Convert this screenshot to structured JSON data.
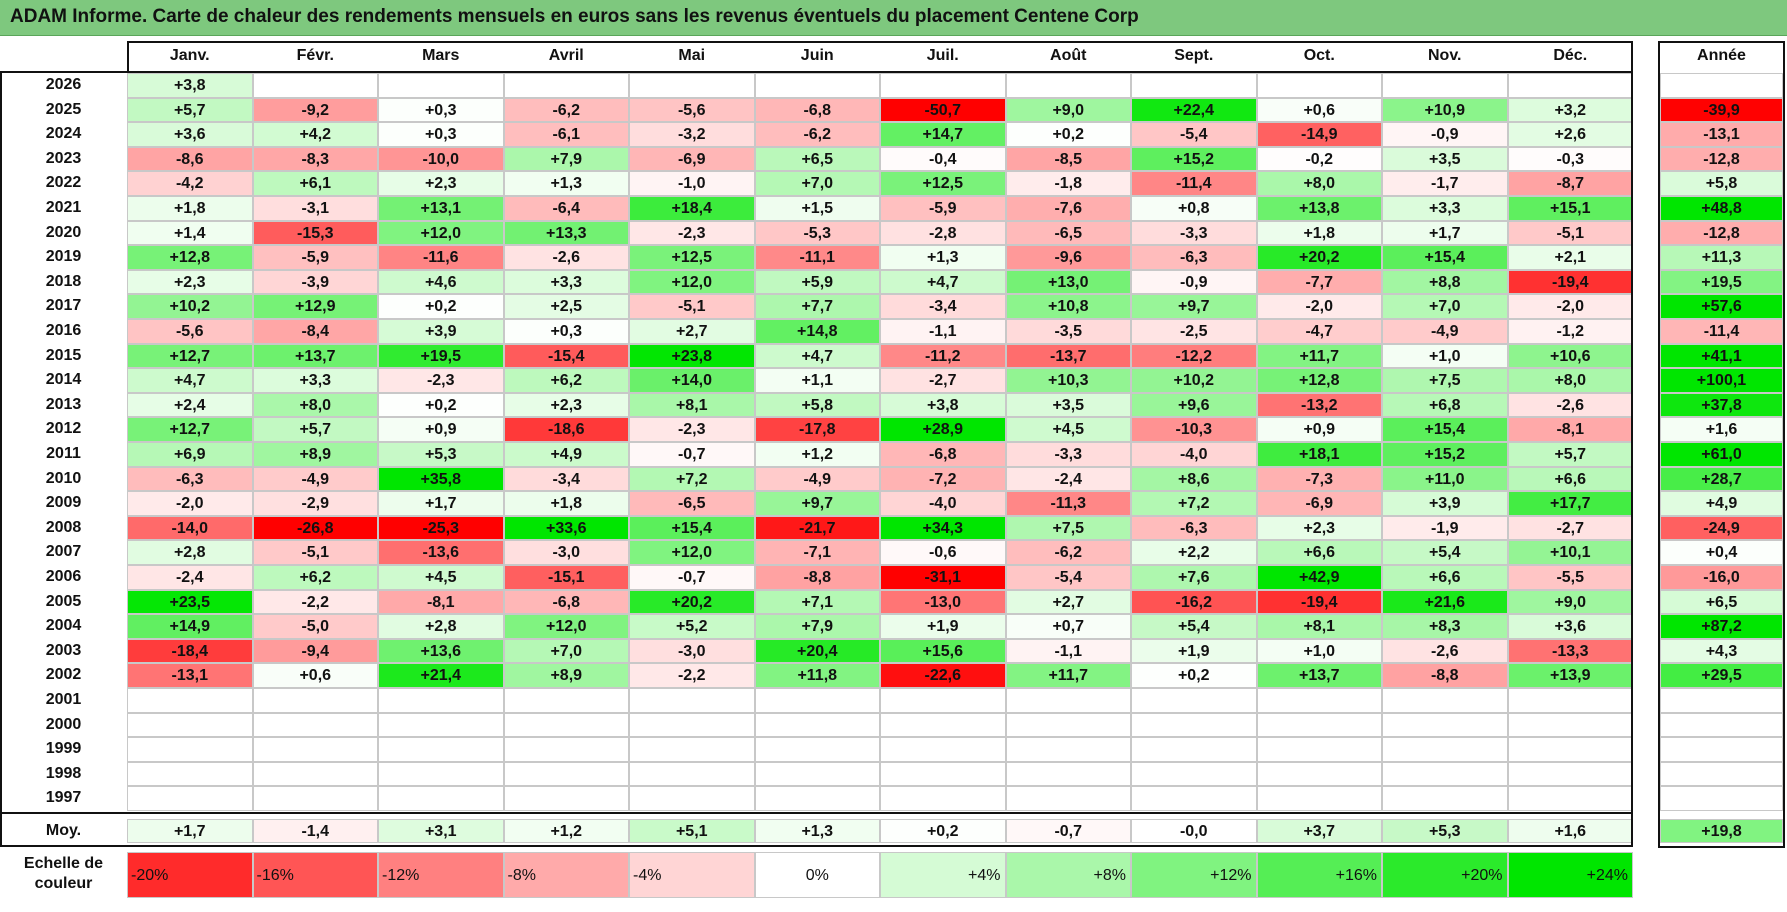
{
  "title": "ADAM Informe. Carte de chaleur des rendements mensuels en euros sans les revenus éventuels du placement Centene Corp",
  "chart_data": {
    "type": "heatmap",
    "columns": [
      "Janv.",
      "Févr.",
      "Mars",
      "Avril",
      "Mai",
      "Juin",
      "Juil.",
      "Août",
      "Sept.",
      "Oct.",
      "Nov.",
      "Déc."
    ],
    "year_column": "Année",
    "rows": [
      {
        "label": "2026",
        "values": [
          "+3,8",
          "",
          "",
          "",
          "",
          "",
          "",
          "",
          "",
          "",
          "",
          ""
        ],
        "year": ""
      },
      {
        "label": "2025",
        "values": [
          "+5,7",
          "-9,2",
          "+0,3",
          "-6,2",
          "-5,6",
          "-6,8",
          "-50,7",
          "+9,0",
          "+22,4",
          "+0,6",
          "+10,9",
          "+3,2"
        ],
        "year": "-39,9"
      },
      {
        "label": "2024",
        "values": [
          "+3,6",
          "+4,2",
          "+0,3",
          "-6,1",
          "-3,2",
          "-6,2",
          "+14,7",
          "+0,2",
          "-5,4",
          "-14,9",
          "-0,9",
          "+2,6"
        ],
        "year": "-13,1"
      },
      {
        "label": "2023",
        "values": [
          "-8,6",
          "-8,3",
          "-10,0",
          "+7,9",
          "-6,9",
          "+6,5",
          "-0,4",
          "-8,5",
          "+15,2",
          "-0,2",
          "+3,5",
          "-0,3"
        ],
        "year": "-12,8"
      },
      {
        "label": "2022",
        "values": [
          "-4,2",
          "+6,1",
          "+2,3",
          "+1,3",
          "-1,0",
          "+7,0",
          "+12,5",
          "-1,8",
          "-11,4",
          "+8,0",
          "-1,7",
          "-8,7"
        ],
        "year": "+5,8"
      },
      {
        "label": "2021",
        "values": [
          "+1,8",
          "-3,1",
          "+13,1",
          "-6,4",
          "+18,4",
          "+1,5",
          "-5,9",
          "-7,6",
          "+0,8",
          "+13,8",
          "+3,3",
          "+15,1"
        ],
        "year": "+48,8"
      },
      {
        "label": "2020",
        "values": [
          "+1,4",
          "-15,3",
          "+12,0",
          "+13,3",
          "-2,3",
          "-5,3",
          "-2,8",
          "-6,5",
          "-3,3",
          "+1,8",
          "+1,7",
          "-5,1"
        ],
        "year": "-12,8"
      },
      {
        "label": "2019",
        "values": [
          "+12,8",
          "-5,9",
          "-11,6",
          "-2,6",
          "+12,5",
          "-11,1",
          "+1,3",
          "-9,6",
          "-6,3",
          "+20,2",
          "+15,4",
          "+2,1"
        ],
        "year": "+11,3"
      },
      {
        "label": "2018",
        "values": [
          "+2,3",
          "-3,9",
          "+4,6",
          "+3,3",
          "+12,0",
          "+5,9",
          "+4,7",
          "+13,0",
          "-0,9",
          "-7,7",
          "+8,8",
          "-19,4"
        ],
        "year": "+19,5"
      },
      {
        "label": "2017",
        "values": [
          "+10,2",
          "+12,9",
          "+0,2",
          "+2,5",
          "-5,1",
          "+7,7",
          "-3,4",
          "+10,8",
          "+9,7",
          "-2,0",
          "+7,0",
          "-2,0"
        ],
        "year": "+57,6"
      },
      {
        "label": "2016",
        "values": [
          "-5,6",
          "-8,4",
          "+3,9",
          "+0,3",
          "+2,7",
          "+14,8",
          "-1,1",
          "-3,5",
          "-2,5",
          "-4,7",
          "-4,9",
          "-1,2"
        ],
        "year": "-11,4"
      },
      {
        "label": "2015",
        "values": [
          "+12,7",
          "+13,7",
          "+19,5",
          "-15,4",
          "+23,8",
          "+4,7",
          "-11,2",
          "-13,7",
          "-12,2",
          "+11,7",
          "+1,0",
          "+10,6"
        ],
        "year": "+41,1"
      },
      {
        "label": "2014",
        "values": [
          "+4,7",
          "+3,3",
          "-2,3",
          "+6,2",
          "+14,0",
          "+1,1",
          "-2,7",
          "+10,3",
          "+10,2",
          "+12,8",
          "+7,5",
          "+8,0"
        ],
        "year": "+100,1"
      },
      {
        "label": "2013",
        "values": [
          "+2,4",
          "+8,0",
          "+0,2",
          "+2,3",
          "+8,1",
          "+5,8",
          "+3,8",
          "+3,5",
          "+9,6",
          "-13,2",
          "+6,8",
          "-2,6"
        ],
        "year": "+37,8"
      },
      {
        "label": "2012",
        "values": [
          "+12,7",
          "+5,7",
          "+0,9",
          "-18,6",
          "-2,3",
          "-17,8",
          "+28,9",
          "+4,5",
          "-10,3",
          "+0,9",
          "+15,4",
          "-8,1"
        ],
        "year": "+1,6"
      },
      {
        "label": "2011",
        "values": [
          "+6,9",
          "+8,9",
          "+5,3",
          "+4,9",
          "-0,7",
          "+1,2",
          "-6,8",
          "-3,3",
          "-4,0",
          "+18,1",
          "+15,2",
          "+5,7"
        ],
        "year": "+61,0"
      },
      {
        "label": "2010",
        "values": [
          "-6,3",
          "-4,9",
          "+35,8",
          "-3,4",
          "+7,2",
          "-4,9",
          "-7,2",
          "-2,4",
          "+8,6",
          "-7,3",
          "+11,0",
          "+6,6"
        ],
        "year": "+28,7"
      },
      {
        "label": "2009",
        "values": [
          "-2,0",
          "-2,9",
          "+1,7",
          "+1,8",
          "-6,5",
          "+9,7",
          "-4,0",
          "-11,3",
          "+7,2",
          "-6,9",
          "+3,9",
          "+17,7"
        ],
        "year": "+4,9"
      },
      {
        "label": "2008",
        "values": [
          "-14,0",
          "-26,8",
          "-25,3",
          "+33,6",
          "+15,4",
          "-21,7",
          "+34,3",
          "+7,5",
          "-6,3",
          "+2,3",
          "-1,9",
          "-2,7"
        ],
        "year": "-24,9"
      },
      {
        "label": "2007",
        "values": [
          "+2,8",
          "-5,1",
          "-13,6",
          "-3,0",
          "+12,0",
          "-7,1",
          "-0,6",
          "-6,2",
          "+2,2",
          "+6,6",
          "+5,4",
          "+10,1"
        ],
        "year": "+0,4"
      },
      {
        "label": "2006",
        "values": [
          "-2,4",
          "+6,2",
          "+4,5",
          "-15,1",
          "-0,7",
          "-8,8",
          "-31,1",
          "-5,4",
          "+7,6",
          "+42,9",
          "+6,6",
          "-5,5"
        ],
        "year": "-16,0"
      },
      {
        "label": "2005",
        "values": [
          "+23,5",
          "-2,2",
          "-8,1",
          "-6,8",
          "+20,2",
          "+7,1",
          "-13,0",
          "+2,7",
          "-16,2",
          "-19,4",
          "+21,6",
          "+9,0"
        ],
        "year": "+6,5"
      },
      {
        "label": "2004",
        "values": [
          "+14,9",
          "-5,0",
          "+2,8",
          "+12,0",
          "+5,2",
          "+7,9",
          "+1,9",
          "+0,7",
          "+5,4",
          "+8,1",
          "+8,3",
          "+3,6"
        ],
        "year": "+87,2"
      },
      {
        "label": "2003",
        "values": [
          "-18,4",
          "-9,4",
          "+13,6",
          "+7,0",
          "-3,0",
          "+20,4",
          "+15,6",
          "-1,1",
          "+1,9",
          "+1,0",
          "-2,6",
          "-13,3"
        ],
        "year": "+4,3"
      },
      {
        "label": "2002",
        "values": [
          "-13,1",
          "+0,6",
          "+21,4",
          "+8,9",
          "-2,2",
          "+11,8",
          "-22,6",
          "+11,7",
          "+0,2",
          "+13,7",
          "-8,8",
          "+13,9"
        ],
        "year": "+29,5"
      },
      {
        "label": "2001",
        "values": [
          "",
          "",
          "",
          "",
          "",
          "",
          "",
          "",
          "",
          "",
          "",
          ""
        ],
        "year": ""
      },
      {
        "label": "2000",
        "values": [
          "",
          "",
          "",
          "",
          "",
          "",
          "",
          "",
          "",
          "",
          "",
          ""
        ],
        "year": ""
      },
      {
        "label": "1999",
        "values": [
          "",
          "",
          "",
          "",
          "",
          "",
          "",
          "",
          "",
          "",
          "",
          ""
        ],
        "year": ""
      },
      {
        "label": "1998",
        "values": [
          "",
          "",
          "",
          "",
          "",
          "",
          "",
          "",
          "",
          "",
          "",
          ""
        ],
        "year": ""
      },
      {
        "label": "1997",
        "values": [
          "",
          "",
          "",
          "",
          "",
          "",
          "",
          "",
          "",
          "",
          "",
          ""
        ],
        "year": ""
      }
    ],
    "average_row": {
      "label": "Moy.",
      "values": [
        "+1,7",
        "-1,4",
        "+3,1",
        "+1,2",
        "+5,1",
        "+1,3",
        "+0,2",
        "-0,7",
        "-0,0",
        "+3,7",
        "+5,3",
        "+1,6"
      ],
      "year": "+19,8"
    },
    "scale": {
      "label": "Echelle de couleur",
      "stops": [
        "-20%",
        "-16%",
        "-12%",
        "-8%",
        "-4%",
        "0%",
        "+4%",
        "+8%",
        "+12%",
        "+16%",
        "+20%",
        "+24%"
      ],
      "stop_values": [
        -20,
        -16,
        -12,
        -8,
        -4,
        0,
        4,
        8,
        12,
        16,
        20,
        24
      ]
    },
    "colors": {
      "negative_max": "#ff0000",
      "neutral": "#ffffff",
      "positive_max": "#00e600"
    }
  }
}
